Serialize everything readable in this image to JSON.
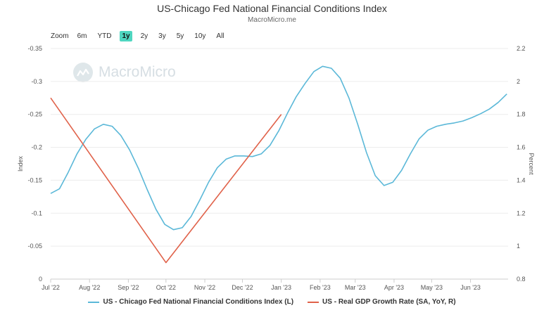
{
  "header": {
    "title": "US-Chicago Fed National Financial Conditions Index",
    "subtitle": "MacroMicro.me"
  },
  "zoom": {
    "label": "Zoom",
    "buttons": [
      "6m",
      "YTD",
      "1y",
      "2y",
      "3y",
      "5y",
      "10y",
      "All"
    ],
    "active": "1y"
  },
  "watermark": {
    "text": "MacroMicro"
  },
  "colors": {
    "nfci": "#5bb8d8",
    "gdp": "#e0624a",
    "active_zoom": "#4fd6c0"
  },
  "chart_data": {
    "type": "line",
    "x_ticks": [
      "Jul '22",
      "Aug '22",
      "Sep '22",
      "Oct '22",
      "Nov '22",
      "Dec '22",
      "Jan '23",
      "Feb '23",
      "Mar '23",
      "Apr '23",
      "May '23",
      "Jun '23"
    ],
    "y_left": {
      "label": "Index",
      "ticks": [
        "-0.35",
        "-0.3",
        "-0.25",
        "-0.2",
        "-0.15",
        "-0.1",
        "-0.05",
        "0"
      ],
      "reversed": true,
      "range": [
        0,
        -0.35
      ]
    },
    "y_right": {
      "label": "Percent",
      "ticks": [
        "2.2",
        "2",
        "1.8",
        "1.6",
        "1.4",
        "1.2",
        "1",
        "0.8"
      ],
      "range": [
        0.8,
        2.2
      ]
    },
    "series": [
      {
        "name": "US - Chicago Fed National Financial Conditions Index (L)",
        "axis": "left",
        "points": [
          [
            "2022-07-01",
            -0.13
          ],
          [
            "2022-07-08",
            -0.137
          ],
          [
            "2022-07-15",
            -0.162
          ],
          [
            "2022-07-22",
            -0.19
          ],
          [
            "2022-07-29",
            -0.212
          ],
          [
            "2022-08-05",
            -0.228
          ],
          [
            "2022-08-12",
            -0.235
          ],
          [
            "2022-08-19",
            -0.232
          ],
          [
            "2022-08-26",
            -0.218
          ],
          [
            "2022-09-02",
            -0.196
          ],
          [
            "2022-09-09",
            -0.168
          ],
          [
            "2022-09-16",
            -0.136
          ],
          [
            "2022-09-23",
            -0.106
          ],
          [
            "2022-09-30",
            -0.083
          ],
          [
            "2022-10-07",
            -0.075
          ],
          [
            "2022-10-14",
            -0.078
          ],
          [
            "2022-10-21",
            -0.095
          ],
          [
            "2022-10-28",
            -0.12
          ],
          [
            "2022-11-04",
            -0.147
          ],
          [
            "2022-11-11",
            -0.169
          ],
          [
            "2022-11-18",
            -0.182
          ],
          [
            "2022-11-25",
            -0.187
          ],
          [
            "2022-12-02",
            -0.187
          ],
          [
            "2022-12-09",
            -0.186
          ],
          [
            "2022-12-16",
            -0.19
          ],
          [
            "2022-12-23",
            -0.203
          ],
          [
            "2022-12-30",
            -0.225
          ],
          [
            "2023-01-06",
            -0.252
          ],
          [
            "2023-01-13",
            -0.277
          ],
          [
            "2023-01-20",
            -0.297
          ],
          [
            "2023-01-27",
            -0.315
          ],
          [
            "2023-02-03",
            -0.323
          ],
          [
            "2023-02-10",
            -0.32
          ],
          [
            "2023-02-17",
            -0.305
          ],
          [
            "2023-02-24",
            -0.275
          ],
          [
            "2023-03-03",
            -0.235
          ],
          [
            "2023-03-10",
            -0.192
          ],
          [
            "2023-03-17",
            -0.157
          ],
          [
            "2023-03-24",
            -0.142
          ],
          [
            "2023-03-31",
            -0.147
          ],
          [
            "2023-04-07",
            -0.165
          ],
          [
            "2023-04-14",
            -0.19
          ],
          [
            "2023-04-21",
            -0.213
          ],
          [
            "2023-04-28",
            -0.226
          ],
          [
            "2023-05-05",
            -0.232
          ],
          [
            "2023-05-12",
            -0.235
          ],
          [
            "2023-05-19",
            -0.237
          ],
          [
            "2023-05-26",
            -0.24
          ],
          [
            "2023-06-02",
            -0.245
          ],
          [
            "2023-06-09",
            -0.251
          ],
          [
            "2023-06-16",
            -0.258
          ],
          [
            "2023-06-23",
            -0.268
          ],
          [
            "2023-06-30",
            -0.281
          ]
        ]
      },
      {
        "name": "US - Real GDP Growth Rate (SA, YoY, R)",
        "axis": "right",
        "points": [
          [
            "2022-07-01",
            1.9
          ],
          [
            "2022-10-01",
            0.9
          ],
          [
            "2023-01-01",
            1.8
          ]
        ]
      }
    ]
  }
}
